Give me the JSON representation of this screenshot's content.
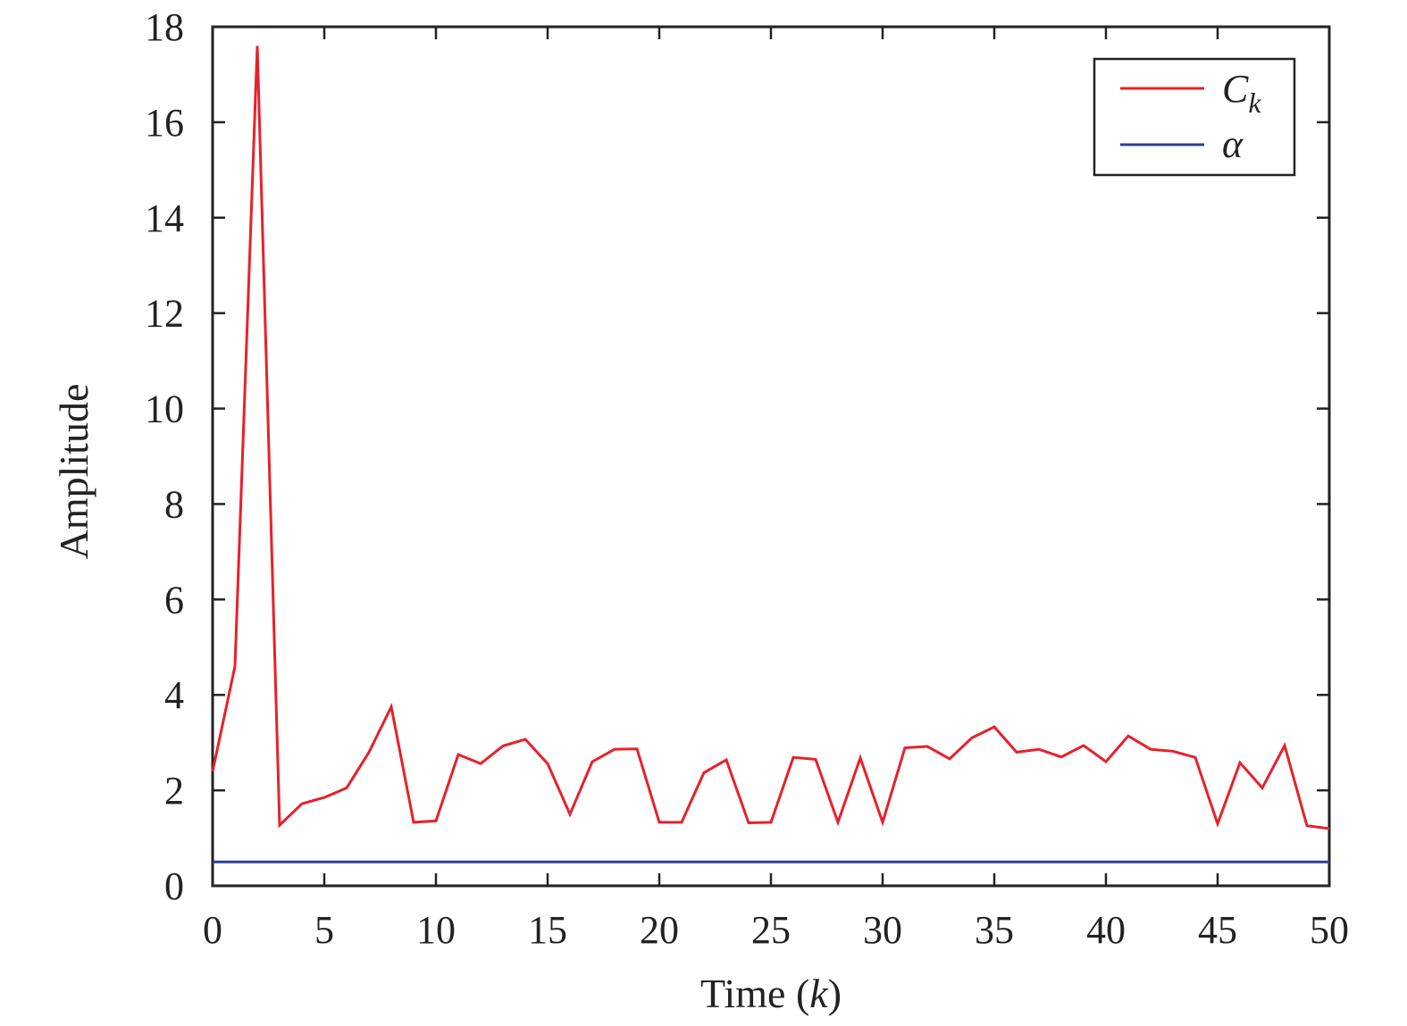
{
  "chart_data": {
    "type": "line",
    "xlabel_prefix": "Time (",
    "xlabel_var": "k",
    "xlabel_suffix": ")",
    "ylabel": "Amplitude",
    "xlim": [
      0,
      50
    ],
    "ylim": [
      0,
      18
    ],
    "xticks": [
      0,
      5,
      10,
      15,
      20,
      25,
      30,
      35,
      40,
      45,
      50
    ],
    "yticks": [
      0,
      2,
      4,
      6,
      8,
      10,
      12,
      14,
      16,
      18
    ],
    "grid": false,
    "legend_position": "top-right",
    "series": [
      {
        "name": "C",
        "name_subscript": "k",
        "color": "#e8202a",
        "x": [
          0,
          1,
          2,
          3,
          4,
          5,
          6,
          7,
          8,
          9,
          10,
          11,
          12,
          13,
          14,
          15,
          16,
          17,
          18,
          19,
          20,
          21,
          22,
          23,
          24,
          25,
          26,
          27,
          28,
          29,
          30,
          31,
          32,
          33,
          34,
          35,
          36,
          37,
          38,
          39,
          40,
          41,
          42,
          43,
          44,
          45,
          46,
          47,
          48,
          49,
          50
        ],
        "y": [
          2.4,
          4.6,
          17.6,
          1.27,
          1.72,
          1.85,
          2.05,
          2.8,
          3.75,
          1.33,
          1.36,
          2.75,
          2.56,
          2.93,
          3.07,
          2.56,
          1.5,
          2.6,
          2.86,
          2.87,
          1.33,
          1.33,
          2.37,
          2.64,
          1.32,
          1.33,
          2.69,
          2.65,
          1.33,
          2.68,
          1.33,
          2.89,
          2.92,
          2.66,
          3.1,
          3.33,
          2.8,
          2.86,
          2.7,
          2.94,
          2.6,
          3.14,
          2.86,
          2.82,
          2.69,
          1.3,
          2.58,
          2.05,
          2.94,
          1.26,
          1.2
        ]
      },
      {
        "name": "α",
        "color": "#2a3f96",
        "x": [
          0,
          50
        ],
        "y": [
          0.5,
          0.5
        ]
      }
    ]
  }
}
